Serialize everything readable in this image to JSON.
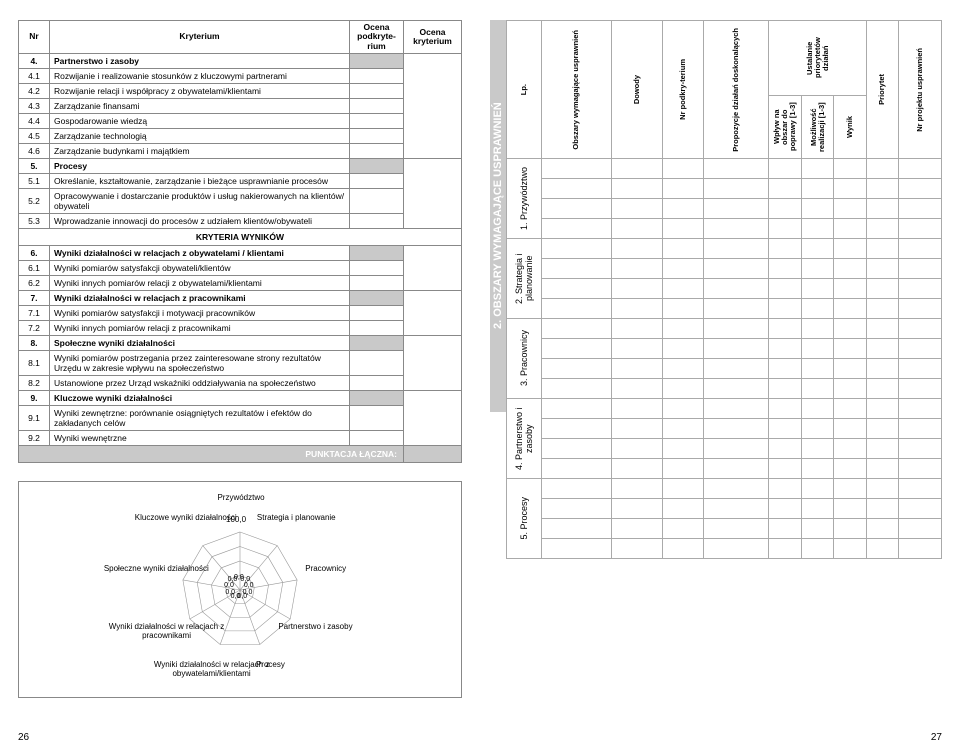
{
  "page_left_num": "26",
  "page_right_num": "27",
  "criteria": {
    "headers": [
      "Nr",
      "Kryterium",
      "Ocena podkryte-rium",
      "Ocena kryterium"
    ],
    "section_results": "KRYTERIA WYNIKÓW",
    "total_label": "PUNKTACJA ŁĄCZNA:",
    "rows": [
      {
        "nr": "4.",
        "kr": "Partnerstwo i zasoby",
        "bold": true
      },
      {
        "nr": "4.1",
        "kr": "Rozwijanie i realizowanie stosunków z kluczowymi partnerami"
      },
      {
        "nr": "4.2",
        "kr": "Rozwijanie relacji i współpracy z obywatelami/klientami"
      },
      {
        "nr": "4.3",
        "kr": "Zarządzanie finansami"
      },
      {
        "nr": "4.4",
        "kr": "Gospodarowanie wiedzą"
      },
      {
        "nr": "4.5",
        "kr": "Zarządzanie technologią"
      },
      {
        "nr": "4.6",
        "kr": "Zarządzanie budynkami i majątkiem"
      },
      {
        "nr": "5.",
        "kr": "Procesy",
        "bold": true
      },
      {
        "nr": "5.1",
        "kr": "Określanie, kształtowanie, zarządzanie i bieżące usprawnianie procesów"
      },
      {
        "nr": "5.2",
        "kr": "Opracowywanie i dostarczanie produktów i usług nakierowanych na klientów/ obywateli"
      },
      {
        "nr": "5.3",
        "kr": "Wprowadzanie innowacji do procesów z udziałem klientów/obywateli"
      }
    ],
    "rows2": [
      {
        "nr": "6.",
        "kr": "Wyniki działalności w relacjach z obywatelami / klientami",
        "bold": true
      },
      {
        "nr": "6.1",
        "kr": "Wyniki pomiarów satysfakcji obywateli/klientów"
      },
      {
        "nr": "6.2",
        "kr": "Wyniki innych pomiarów relacji z obywatelami/klientami"
      },
      {
        "nr": "7.",
        "kr": "Wyniki działalności w relacjach z pracownikami",
        "bold": true
      },
      {
        "nr": "7.1",
        "kr": "Wyniki pomiarów satysfakcji i motywacji pracowników"
      },
      {
        "nr": "7.2",
        "kr": "Wyniki innych pomiarów relacji z pracownikami"
      },
      {
        "nr": "8.",
        "kr": "Społeczne wyniki działalności",
        "bold": true
      },
      {
        "nr": "8.1",
        "kr": "Wyniki pomiarów postrzegania przez zainteresowane strony rezultatów Urzędu w zakresie wpływu na społeczeństwo"
      },
      {
        "nr": "8.2",
        "kr": "Ustanowione przez Urząd wskaźniki oddziaływania na społeczeństwo"
      },
      {
        "nr": "9.",
        "kr": "Kluczowe wyniki działalności",
        "bold": true
      },
      {
        "nr": "9.1",
        "kr": "Wyniki zewnętrzne: porównanie osiągniętych rezultatów i efektów do zakładanych celów"
      },
      {
        "nr": "9.2",
        "kr": "Wyniki wewnętrzne"
      }
    ]
  },
  "radar": {
    "rings": 4,
    "spokes": 9,
    "max_label": "100,0",
    "zero_labels": [
      "0,0",
      "0,0",
      "0,0",
      "0,0",
      "0,0",
      "0,0",
      "0,0",
      "0,0",
      "0,0"
    ],
    "axes": [
      "Przywództwo",
      "Strategia i planowanie",
      "Pracownicy",
      "Partnerstwo i zasoby",
      "Procesy",
      "Wyniki działalności w relacjach\nz obywatelami/klientami",
      "Wyniki działalności w relacjach\nz pracownikami",
      "Społeczne wyniki działalności",
      "Kluczowe wyniki działalności"
    ]
  },
  "right": {
    "header": "2.  OBSZARY WYMAGAJĄCE USPRAWNIEŃ",
    "top_headers": {
      "c1": "Ustalanie priorytetów działań",
      "c1a": "Wpływ na obszar do poprawy [1-3]",
      "c1b": "Możliwość realizacji [1-3]",
      "c1c": "Wynik",
      "c2": "Priorytet",
      "c3": "Nr projektu usprawnień"
    },
    "bottom_headers": {
      "lp": "Lp.",
      "obs": "Obszary wymagające usprawnień",
      "dow": "Dowody",
      "nrp": "Nr podkry-terium",
      "prop": "Propozycje działań doskonalących"
    },
    "categories": [
      "1. Przywództwo",
      "2. Strategia i planowanie",
      "3. Pracownicy",
      "4. Partnerstwo i zasoby",
      "5. Procesy"
    ],
    "rows_per_cat": 4
  },
  "colors": {
    "gray_bg": "#c9c9c9",
    "border": "#888888",
    "radar_line": "#777777"
  }
}
